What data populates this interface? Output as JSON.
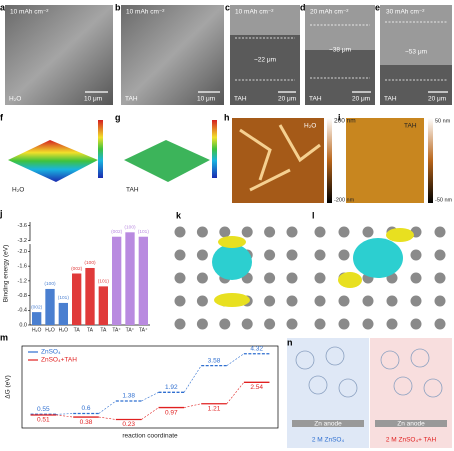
{
  "panels": {
    "a": {
      "letter": "a",
      "capacity": "10 mAh cm⁻²",
      "label": "H₂O",
      "scale": "10 μm"
    },
    "b": {
      "letter": "b",
      "capacity": "10 mAh cm⁻²",
      "label": "TAH",
      "scale": "10 μm"
    },
    "c": {
      "letter": "c",
      "capacity": "10 mAh cm⁻²",
      "thickness": "~22 μm",
      "label": "TAH",
      "scale": "20 μm"
    },
    "d": {
      "letter": "d",
      "capacity": "20 mAh cm⁻²",
      "thickness": "~38 μm",
      "label": "TAH",
      "scale": "20 μm"
    },
    "e": {
      "letter": "e",
      "capacity": "30 mAh cm⁻²",
      "thickness": "~53 μm",
      "label": "TAH",
      "scale": "20 μm"
    },
    "f": {
      "letter": "f",
      "label": "H₂O"
    },
    "g": {
      "letter": "g",
      "label": "TAH"
    },
    "h": {
      "letter": "h",
      "label": "H₂O",
      "bar_max": "200 nm",
      "bar_min": "-200 nm"
    },
    "i": {
      "letter": "i",
      "label": "TAH",
      "bar_max": "50 nm",
      "bar_min": "-50 nm"
    },
    "k": {
      "letter": "k"
    },
    "l": {
      "letter": "l"
    },
    "n": {
      "letter": "n",
      "anode_left": "Zn anode",
      "anode_right": "Zn anode",
      "caption_left": "2 M ZnSO₄",
      "caption_right": "2 M ZnSO₄+ TAH"
    }
  },
  "chart_data": [
    {
      "type": "bar",
      "panel_label": "j",
      "y_label": "Binding energy (eV)",
      "categories": [
        "H₂O",
        "H₂O",
        "H₂O",
        "TA",
        "TA",
        "TA",
        "TA⁺",
        "TA⁺",
        "TA⁺"
      ],
      "bar_labels": [
        "(002)",
        "(100)",
        "(101)",
        "(002)",
        "(100)",
        "(101)",
        "(002)",
        "(100)",
        "(101)"
      ],
      "values": [
        -0.35,
        -0.98,
        -0.6,
        -1.4,
        -1.55,
        -1.05,
        -3.3,
        -3.42,
        -3.3
      ],
      "colors": [
        "#4a7fd0",
        "#4a7fd0",
        "#4a7fd0",
        "#e03a3a",
        "#e03a3a",
        "#e03a3a",
        "#b98ae0",
        "#b98ae0",
        "#b98ae0"
      ],
      "ylim": [
        0,
        -3.7
      ],
      "ybreak": [
        -2.2,
        -3.1
      ],
      "yticks": [
        {
          "value": 0,
          "label": "0.0"
        },
        -0.4,
        -0.8,
        -1.2,
        -1.6,
        {
          "value": -2,
          "label": "-2.0"
        },
        -3.2,
        -3.6
      ]
    },
    {
      "type": "step",
      "panel_label": "m",
      "y_label": "ΔG (eV)",
      "x_label": "reaction coordinate",
      "ylim": [
        -0.3,
        4.8
      ],
      "series": [
        {
          "name": "ZnSO₄",
          "color": "#2f6fd0",
          "values": [
            0.55,
            0.6,
            1.38,
            1.92,
            3.58,
            4.32
          ]
        },
        {
          "name": "ZnSO₄+TAH",
          "color": "#e02020",
          "values": [
            0.51,
            0.38,
            0.23,
            0.97,
            1.21,
            2.54
          ]
        }
      ]
    }
  ]
}
